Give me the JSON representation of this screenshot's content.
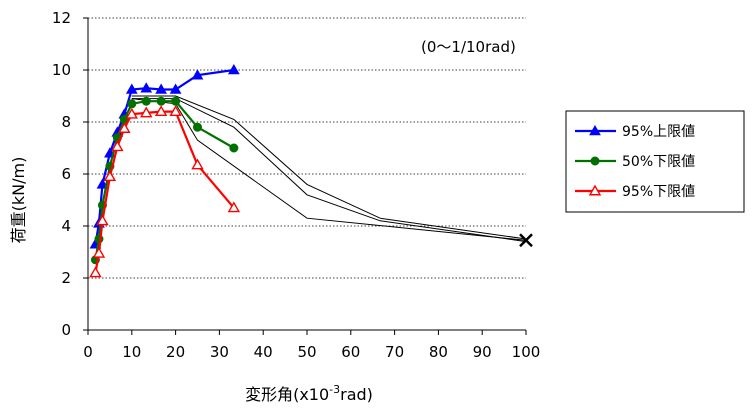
{
  "chart_data": {
    "type": "line",
    "title": "",
    "annotation": "(0〜1/10rad)",
    "xlabel_main": "変形角(x10",
    "xlabel_sup": "-3",
    "xlabel_tail": "rad)",
    "ylabel": "荷重(kN/m)",
    "xlim": [
      0,
      100
    ],
    "ylim": [
      0,
      12
    ],
    "xticks": [
      "0",
      "10",
      "20",
      "30",
      "40",
      "50",
      "60",
      "70",
      "80",
      "90",
      "100"
    ],
    "yticks": [
      "0",
      "2",
      "4",
      "6",
      "8",
      "10",
      "12"
    ],
    "grid": "horizontal dotted",
    "legend_position": "right",
    "series": [
      {
        "name": "95%上限値",
        "color": "#0000ff",
        "marker": "triangle-filled",
        "x": [
          1.7,
          2.5,
          3.3,
          5,
          6.7,
          8.3,
          10,
          13.3,
          16.7,
          20,
          25,
          33.3
        ],
        "y": [
          3.3,
          4.1,
          5.6,
          6.8,
          7.6,
          8.3,
          9.25,
          9.3,
          9.25,
          9.25,
          9.8,
          10.0
        ]
      },
      {
        "name": "50%下限値",
        "color": "#007000",
        "marker": "circle-filled",
        "x": [
          1.7,
          2.5,
          3.3,
          5,
          6.7,
          8.3,
          10,
          13.3,
          16.7,
          20,
          25,
          33.3
        ],
        "y": [
          2.7,
          3.5,
          4.8,
          6.3,
          7.4,
          8.1,
          8.7,
          8.8,
          8.8,
          8.8,
          7.8,
          7.0
        ]
      },
      {
        "name": "95%下限値",
        "color": "#ff0000",
        "marker": "triangle-open",
        "x": [
          1.7,
          2.5,
          3.3,
          5,
          6.7,
          8.3,
          10,
          13.3,
          16.7,
          20,
          25,
          33.3
        ],
        "y": [
          2.2,
          2.95,
          4.2,
          5.9,
          7.05,
          7.75,
          8.3,
          8.35,
          8.4,
          8.4,
          6.35,
          4.7
        ]
      }
    ],
    "reference_lines": [
      {
        "color": "#000000",
        "x": [
          10,
          20,
          33.3,
          50,
          66.7,
          100
        ],
        "y": [
          9.0,
          9.0,
          8.1,
          5.6,
          4.3,
          3.5
        ]
      },
      {
        "color": "#000000",
        "x": [
          10,
          20,
          33.3,
          50,
          66.7,
          100
        ],
        "y": [
          8.9,
          8.9,
          7.8,
          5.2,
          4.2,
          3.4
        ]
      },
      {
        "color": "#000000",
        "x": [
          10,
          20,
          25,
          50,
          100
        ],
        "y": [
          8.9,
          8.7,
          7.3,
          4.3,
          3.45
        ]
      }
    ],
    "end_marker": {
      "symbol": "x",
      "x": 100,
      "y": 3.45
    }
  }
}
